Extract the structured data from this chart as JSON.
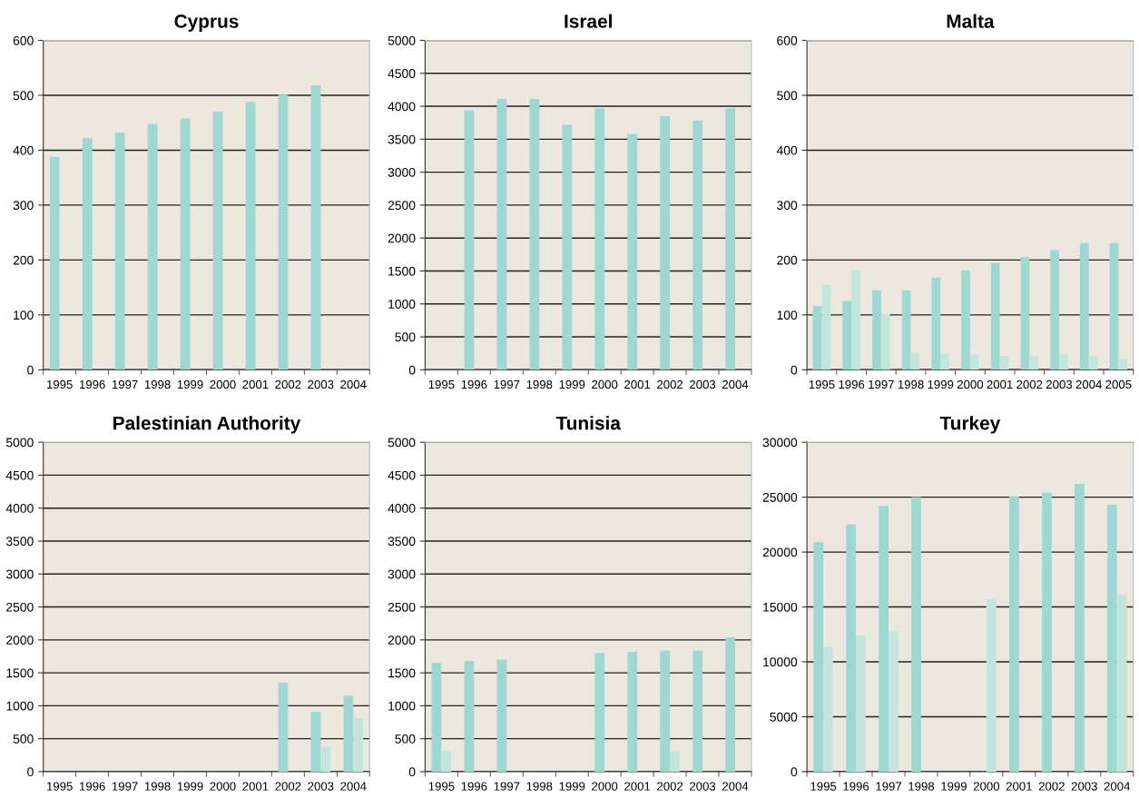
{
  "chart_data": [
    {
      "type": "bar",
      "title": "Cyprus",
      "categories": [
        "1995",
        "1996",
        "1997",
        "1998",
        "1999",
        "2000",
        "2001",
        "2002",
        "2003",
        "2004"
      ],
      "series": [
        {
          "color": "#9fd8d3",
          "values": [
            388,
            422,
            432,
            448,
            458,
            470,
            488,
            501,
            518,
            null
          ]
        },
        {
          "color": "#c3e5db",
          "values": [
            null,
            null,
            null,
            null,
            null,
            null,
            null,
            null,
            null,
            null
          ]
        }
      ],
      "ylim": [
        0,
        600
      ],
      "yticks": [
        0,
        100,
        200,
        300,
        400,
        500,
        600
      ],
      "grid": "y"
    },
    {
      "type": "bar",
      "title": "Israel",
      "categories": [
        "1995",
        "1996",
        "1997",
        "1998",
        "1999",
        "2000",
        "2001",
        "2002",
        "2003",
        "2004"
      ],
      "series": [
        {
          "color": "#9fd8d3",
          "values": [
            null,
            3940,
            4110,
            4110,
            3720,
            3970,
            3580,
            3850,
            3780,
            3970
          ]
        },
        {
          "color": "#c3e5db",
          "values": [
            null,
            null,
            null,
            null,
            null,
            null,
            null,
            null,
            null,
            null
          ]
        }
      ],
      "ylim": [
        0,
        5000
      ],
      "yticks": [
        0,
        500,
        1000,
        1500,
        2000,
        2500,
        3000,
        3500,
        4000,
        4500,
        5000
      ],
      "grid": "y"
    },
    {
      "type": "bar",
      "title": "Malta",
      "categories": [
        "1995",
        "1996",
        "1997",
        "1998",
        "1999",
        "2000",
        "2001",
        "2002",
        "2003",
        "2004",
        "2005"
      ],
      "series": [
        {
          "color": "#9fd8d3",
          "values": [
            116,
            125,
            145,
            145,
            168,
            181,
            195,
            205,
            218,
            231,
            231
          ]
        },
        {
          "color": "#c3e5db",
          "values": [
            155,
            181,
            102,
            30,
            30,
            28,
            25,
            25,
            28,
            25,
            20
          ]
        }
      ],
      "ylim": [
        0,
        600
      ],
      "yticks": [
        0,
        100,
        200,
        300,
        400,
        500,
        600
      ],
      "grid": "y"
    },
    {
      "type": "bar",
      "title": "Palestinian Authority",
      "categories": [
        "1995",
        "1996",
        "1997",
        "1998",
        "1999",
        "2000",
        "2001",
        "2002",
        "2003",
        "2004"
      ],
      "series": [
        {
          "color": "#9fd8d3",
          "values": [
            null,
            null,
            null,
            null,
            null,
            null,
            null,
            1350,
            910,
            1150
          ]
        },
        {
          "color": "#c3e5db",
          "values": [
            null,
            null,
            null,
            null,
            null,
            null,
            null,
            null,
            380,
            810
          ]
        }
      ],
      "ylim": [
        0,
        5000
      ],
      "yticks": [
        0,
        500,
        1000,
        1500,
        2000,
        2500,
        3000,
        3500,
        4000,
        4500,
        5000
      ],
      "grid": "y"
    },
    {
      "type": "bar",
      "title": "Tunisia",
      "categories": [
        "1995",
        "1996",
        "1997",
        "1998",
        "1999",
        "2000",
        "2001",
        "2002",
        "2003",
        "2004"
      ],
      "series": [
        {
          "color": "#9fd8d3",
          "values": [
            1650,
            1680,
            1700,
            null,
            null,
            1800,
            1820,
            1840,
            1840,
            2040
          ]
        },
        {
          "color": "#c3e5db",
          "values": [
            310,
            null,
            null,
            null,
            null,
            null,
            null,
            310,
            null,
            null
          ]
        }
      ],
      "ylim": [
        0,
        5000
      ],
      "yticks": [
        0,
        500,
        1000,
        1500,
        2000,
        2500,
        3000,
        3500,
        4000,
        4500,
        5000
      ],
      "grid": "y"
    },
    {
      "type": "bar",
      "title": "Turkey",
      "categories": [
        "1995",
        "1996",
        "1997",
        "1998",
        "1999",
        "2000",
        "2001",
        "2002",
        "2003",
        "2004"
      ],
      "series": [
        {
          "color": "#9fd8d3",
          "values": [
            20900,
            22500,
            24200,
            25000,
            null,
            null,
            25100,
            25400,
            26200,
            24300
          ]
        },
        {
          "color": "#c3e5db",
          "values": [
            11400,
            12400,
            12800,
            null,
            null,
            15700,
            null,
            null,
            null,
            16100
          ]
        }
      ],
      "ylim": [
        0,
        30000
      ],
      "yticks": [
        0,
        5000,
        10000,
        15000,
        20000,
        25000,
        30000
      ],
      "grid": "y"
    }
  ]
}
